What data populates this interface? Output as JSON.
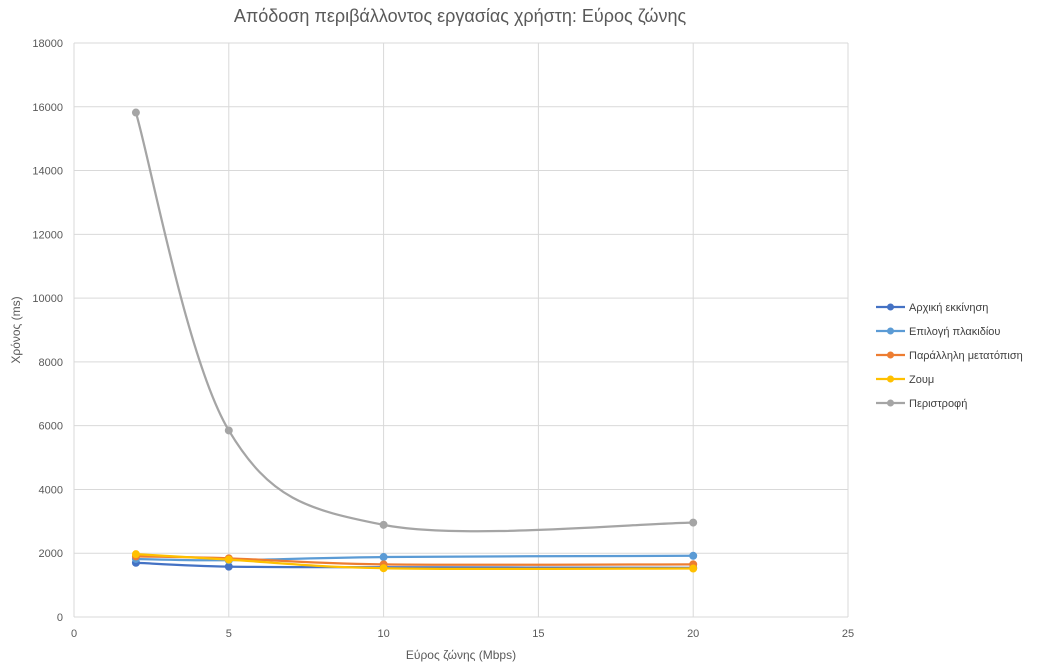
{
  "chart_data": {
    "type": "line",
    "title": "Απόδοση περιβάλλοντος εργασίας χρήστη: Εύρος ζώνης",
    "xlabel": "Εύρος ζώνης (Mbps)",
    "ylabel": "Χρόνος (ms)",
    "xlim": [
      0,
      25
    ],
    "ylim": [
      0,
      18000
    ],
    "x_ticks": [
      "0",
      "5",
      "10",
      "15",
      "20",
      "25"
    ],
    "y_ticks": [
      "0",
      "2000",
      "4000",
      "6000",
      "8000",
      "10000",
      "12000",
      "14000",
      "16000",
      "18000"
    ],
    "grid": true,
    "smooth": true,
    "legend_position": "right",
    "x": [
      2,
      5,
      10,
      20
    ],
    "series": [
      {
        "name": "Αρχική εκκίνηση",
        "color": "#4472c4",
        "values": [
          1700,
          1580,
          1560,
          1540
        ]
      },
      {
        "name": "Επιλογή πλακιδίου",
        "color": "#5b9bd5",
        "values": [
          1820,
          1780,
          1880,
          1920
        ]
      },
      {
        "name": "Παράλληλη μετατόπιση",
        "color": "#ed7d31",
        "values": [
          1900,
          1840,
          1650,
          1650
        ]
      },
      {
        "name": "Ζουμ",
        "color": "#ffc000",
        "values": [
          1970,
          1800,
          1530,
          1520
        ]
      },
      {
        "name": "Περιστροφή",
        "color": "#a5a5a5",
        "values": [
          15820,
          5850,
          2890,
          2960
        ]
      }
    ]
  }
}
